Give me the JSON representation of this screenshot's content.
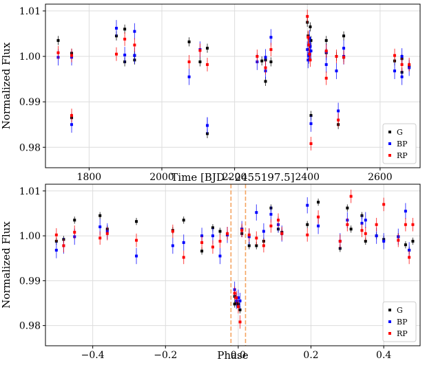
{
  "chart_data": [
    {
      "type": "scatter",
      "xlabel": "Time [BJD - 2455197.5]",
      "ylabel": "Normalized Flux",
      "xlim": [
        1680,
        2710
      ],
      "ylim": [
        0.9755,
        1.0115
      ],
      "xticks": [
        1800,
        2000,
        2200,
        2400,
        2600
      ],
      "xtick_labels": [
        "1800",
        "2000",
        "2200",
        "2400",
        "2600"
      ],
      "yticks": [
        0.98,
        0.99,
        1.0,
        1.01
      ],
      "ytick_labels": [
        "0.98",
        "0.99",
        "1.00",
        "1.01"
      ],
      "grid": true,
      "legend": "bottom-right",
      "series": [
        {
          "name": "G",
          "color": "#000000",
          "err": 0.001,
          "x": [
            1715,
            1752,
            1752,
            1875,
            1898,
            1898,
            1925,
            1925,
            2075,
            2105,
            2125,
            2125,
            2275,
            2285,
            2285,
            2300,
            2400,
            2402,
            2404,
            2406,
            2408,
            2410,
            2410,
            2452,
            2452,
            2480,
            2485,
            2500,
            2500,
            2640,
            2660,
            2660,
            2680
          ],
          "y": [
            1.0035,
            1.0007,
            0.9865,
            1.0045,
            1.006,
            0.9988,
            1.0002,
            0.9992,
            1.0032,
            0.9988,
            1.0018,
            0.983,
            0.999,
            0.9945,
            0.9992,
            0.9988,
            1.0075,
            1.0045,
            1.0025,
            1.0005,
            1.0065,
            1.0035,
            0.987,
            1.0035,
            1.0008,
            1.0,
            0.985,
            1.0045,
            0.9998,
            0.999,
            0.9995,
            0.9965,
            0.9978
          ]
        },
        {
          "name": "BP",
          "color": "#0000ff",
          "err": 0.0018,
          "x": [
            1715,
            1752,
            1752,
            1875,
            1898,
            1925,
            1925,
            2075,
            2105,
            2125,
            2125,
            2262,
            2285,
            2285,
            2300,
            2400,
            2402,
            2404,
            2406,
            2408,
            2410,
            2410,
            2452,
            2452,
            2480,
            2485,
            2500,
            2500,
            2640,
            2660,
            2660,
            2680
          ],
          "y": [
            0.9998,
            0.9998,
            0.985,
            1.0062,
            1.0003,
            1.0055,
            1.0002,
            0.9955,
            1.0015,
            0.9848,
            0.9848,
            0.9988,
            0.9968,
            0.9998,
            1.0042,
            1.0015,
            0.9992,
            1.0002,
            1.004,
            1.0022,
            1.0012,
            0.9852,
            0.9982,
            1.001,
            0.9968,
            0.988,
            1.0018,
            1.0,
            0.9968,
            0.9955,
            1.0,
            0.9975
          ]
        },
        {
          "name": "RP",
          "color": "#ff0000",
          "err": 0.0015,
          "x": [
            1715,
            1752,
            1752,
            1875,
            1898,
            1925,
            2075,
            2105,
            2125,
            2262,
            2285,
            2300,
            2400,
            2402,
            2404,
            2406,
            2408,
            2410,
            2452,
            2452,
            2480,
            2485,
            2500,
            2640,
            2660,
            2680
          ],
          "y": [
            1.0008,
            1.0002,
            0.987,
            1.0005,
            1.0038,
            1.0025,
            0.9988,
            1.0013,
            0.9982,
            1.0,
            0.9975,
            1.0015,
            1.0088,
            1.0042,
            1.0025,
            1.0005,
            0.9992,
            0.9808,
            1.0012,
            0.9952,
            1.0,
            0.986,
            0.9998,
            1.0002,
            0.9982,
            0.9982
          ]
        }
      ]
    },
    {
      "type": "scatter",
      "xlabel": "Phase",
      "ylabel": "Normalized Flux",
      "xlim": [
        -0.53,
        0.5
      ],
      "ylim": [
        0.9755,
        1.0115
      ],
      "xticks": [
        -0.4,
        -0.2,
        0.0,
        0.2,
        0.4
      ],
      "xtick_labels": [
        "−0.4",
        "−0.2",
        "0.0",
        "0.2",
        "0.4"
      ],
      "yticks": [
        0.98,
        0.99,
        1.0,
        1.01
      ],
      "ytick_labels": [
        "0.98",
        "0.99",
        "1.00",
        "1.01"
      ],
      "grid": true,
      "legend": "bottom-right",
      "vlines": [
        -0.02,
        0.02
      ],
      "vline_color": "#f4a460",
      "series": [
        {
          "name": "G",
          "color": "#000000",
          "err": 0.0008,
          "x": [
            -0.5,
            -0.48,
            -0.45,
            -0.38,
            -0.36,
            -0.28,
            -0.18,
            -0.15,
            -0.1,
            -0.07,
            -0.05,
            -0.03,
            -0.01,
            -0.01,
            -0.005,
            0.0,
            0.005,
            0.01,
            0.01,
            0.03,
            0.05,
            0.07,
            0.09,
            0.11,
            0.12,
            0.19,
            0.22,
            0.28,
            0.3,
            0.31,
            0.34,
            0.35,
            0.38,
            0.4,
            0.44,
            0.46,
            0.47,
            0.48
          ],
          "y": [
            0.9988,
            0.9992,
            1.0035,
            1.0045,
            1.0015,
            1.0032,
            1.0012,
            1.0035,
            0.9966,
            1.0018,
            1.001,
            1.0002,
            0.9848,
            0.9865,
            0.985,
            0.9848,
            0.9835,
            1.0005,
            1.0015,
            0.9978,
            0.9978,
            0.9988,
            1.0062,
            1.0015,
            1.0008,
            1.0025,
            1.0075,
            0.9972,
            1.0062,
            1.0015,
            1.0045,
            0.9988,
            1.0,
            0.9992,
            0.9998,
            0.998,
            0.9968,
            0.9988
          ]
        },
        {
          "name": "BP",
          "color": "#0000ff",
          "err": 0.0018,
          "x": [
            -0.5,
            -0.48,
            -0.45,
            -0.38,
            -0.36,
            -0.28,
            -0.18,
            -0.15,
            -0.1,
            -0.07,
            -0.05,
            -0.03,
            -0.01,
            -0.005,
            0.0,
            0.005,
            0.01,
            0.03,
            0.05,
            0.07,
            0.09,
            0.11,
            0.12,
            0.19,
            0.22,
            0.28,
            0.3,
            0.34,
            0.35,
            0.38,
            0.4,
            0.44,
            0.46,
            0.47
          ],
          "y": [
            0.9968,
            0.9978,
            0.9998,
            1.002,
            1.001,
            0.9955,
            0.9978,
            0.9985,
            1.0,
            1.0,
            0.9955,
            1.0002,
            0.988,
            0.9855,
            0.9862,
            0.9855,
            1.0015,
            0.9998,
            1.0052,
            1.001,
            1.0048,
            1.0025,
            1.0005,
            1.0068,
            1.0022,
            0.9988,
            1.0035,
            1.0028,
            1.0035,
            1.0,
            0.9988,
            0.9998,
            1.0055,
            0.9968
          ]
        },
        {
          "name": "RP",
          "color": "#ff0000",
          "err": 0.0015,
          "x": [
            -0.5,
            -0.48,
            -0.45,
            -0.38,
            -0.36,
            -0.28,
            -0.18,
            -0.15,
            -0.1,
            -0.07,
            -0.05,
            -0.03,
            -0.01,
            -0.005,
            0.0,
            0.005,
            0.01,
            0.03,
            0.05,
            0.07,
            0.09,
            0.11,
            0.12,
            0.19,
            0.22,
            0.28,
            0.3,
            0.31,
            0.34,
            0.35,
            0.38,
            0.4,
            0.44,
            0.46,
            0.47,
            0.48
          ],
          "y": [
            1.0002,
            0.9978,
            1.0008,
            0.9995,
            1.0005,
            0.999,
            1.001,
            0.9952,
            0.9985,
            0.9975,
            0.9988,
            1.0005,
            0.9872,
            0.9862,
            0.9842,
            0.9808,
            1.0012,
            1.0002,
            0.9995,
            0.9978,
            1.0022,
            1.0035,
            1.0005,
            1.0002,
            1.0042,
            0.9988,
            1.0025,
            1.0088,
            1.0012,
            1.0005,
            1.0025,
            1.007,
            0.999,
            1.0025,
            0.9952,
            1.0025
          ]
        }
      ]
    }
  ]
}
